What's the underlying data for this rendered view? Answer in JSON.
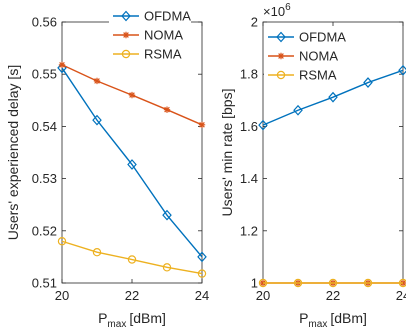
{
  "chart_data": [
    {
      "type": "line",
      "x": [
        20,
        21,
        22,
        23,
        24
      ],
      "xlabel": "P",
      "xlabel_sub": "max",
      "xlabel_unit": "[dBm]",
      "ylabel": "Users' experienced delay [s]",
      "xlim": [
        20,
        24
      ],
      "ylim": [
        0.51,
        0.56
      ],
      "xticks": [
        "20",
        "22",
        "24"
      ],
      "yticks": [
        "0.51",
        "0.52",
        "0.53",
        "0.54",
        "0.55",
        "0.56"
      ],
      "grid": false,
      "legend_position": "top-right",
      "series": [
        {
          "name": "OFDMA",
          "color": "#0072BD",
          "marker": "diamond",
          "values": [
            0.5512,
            0.5412,
            0.5327,
            0.523,
            0.515
          ]
        },
        {
          "name": "NOMA",
          "color": "#D95319",
          "marker": "asterisk",
          "values": [
            0.5518,
            0.5487,
            0.546,
            0.5432,
            0.5403
          ]
        },
        {
          "name": "RSMA",
          "color": "#EDB120",
          "marker": "circle",
          "values": [
            0.518,
            0.5159,
            0.5145,
            0.513,
            0.5118
          ]
        }
      ]
    },
    {
      "type": "line",
      "x": [
        20,
        21,
        22,
        23,
        24
      ],
      "xlabel": "P",
      "xlabel_sub": "max",
      "xlabel_unit": "[dBm]",
      "ylabel": "Users' min rate [bps]",
      "y_exponent_base": "×10",
      "y_exponent": "6",
      "xlim": [
        20,
        24
      ],
      "ylim": [
        1,
        2
      ],
      "xticks": [
        "20",
        "22",
        "24"
      ],
      "yticks": [
        "1",
        "1.2",
        "1.4",
        "1.6",
        "1.8",
        "2"
      ],
      "grid": false,
      "legend_position": "top-left",
      "series": [
        {
          "name": "OFDMA",
          "color": "#0072BD",
          "marker": "diamond",
          "values": [
            1.605,
            1.662,
            1.712,
            1.768,
            1.815
          ]
        },
        {
          "name": "NOMA",
          "color": "#D95319",
          "marker": "asterisk",
          "values": [
            1.0,
            1.0,
            1.0,
            1.0,
            1.0
          ]
        },
        {
          "name": "RSMA",
          "color": "#EDB120",
          "marker": "circle",
          "values": [
            1.0,
            1.0,
            1.0,
            1.0,
            1.0
          ]
        }
      ]
    }
  ]
}
